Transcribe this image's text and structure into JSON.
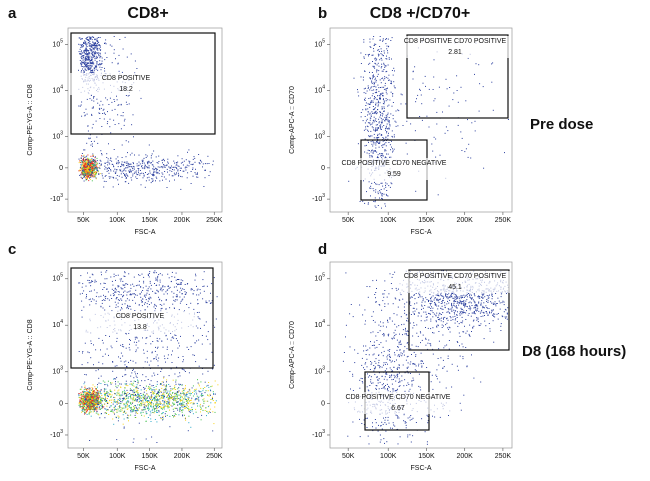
{
  "column_headers": [
    "CD8+",
    "CD8 +/CD70+"
  ],
  "row_labels": [
    "Pre dose",
    "D8 (168 hours)"
  ],
  "x_ticks": [
    "50K",
    "100K",
    "150K",
    "200K",
    "250K"
  ],
  "y_ticks": [
    {
      "base": "10",
      "exp": "5"
    },
    {
      "base": "10",
      "exp": "4"
    },
    {
      "base": "10",
      "exp": "3"
    },
    {
      "base": "0"
    },
    {
      "base": "-10",
      "exp": "3"
    }
  ],
  "panels": [
    {
      "letter": "a",
      "y_axis_label": "Comp-PE-YG-A :: CD8",
      "x_axis_label": "FSC-A",
      "gates": [
        {
          "label": "CD8 POSITIVE",
          "value": 18.2
        }
      ]
    },
    {
      "letter": "b",
      "y_axis_label": "Comp-APC-A :: CD70",
      "x_axis_label": "FSC-A",
      "gates": [
        {
          "label": "CD8 POSITIVE CD70 POSITIVE",
          "value": 2.81
        },
        {
          "label": "CD8 POSITIVE CD70 NEGATIVE",
          "value": 9.59
        }
      ]
    },
    {
      "letter": "c",
      "y_axis_label": "Comp-PE-YG-A :: CD8",
      "x_axis_label": "FSC-A",
      "gates": [
        {
          "label": "CD8 POSITIVE",
          "value": 13.8
        }
      ]
    },
    {
      "letter": "d",
      "y_axis_label": "Comp-APC-A :: CD70",
      "x_axis_label": "FSC-A",
      "gates": [
        {
          "label": "CD8 POSITIVE CD70 POSITIVE",
          "value": 45.1
        },
        {
          "label": "CD8 POSITIVE CD70 NEGATIVE",
          "value": 6.67
        }
      ]
    }
  ]
}
